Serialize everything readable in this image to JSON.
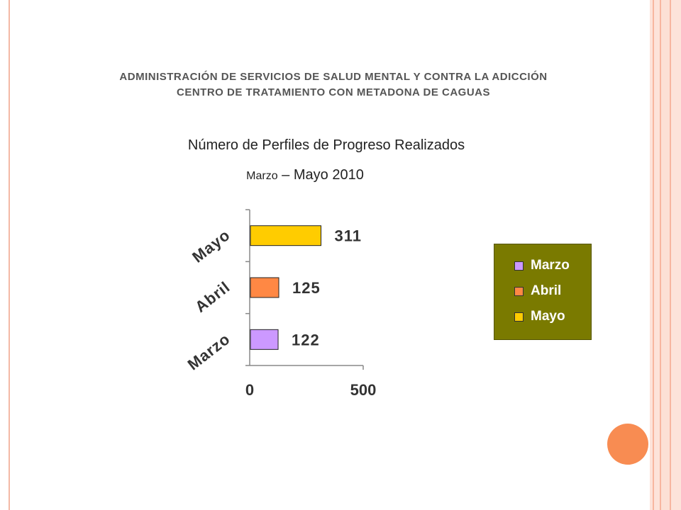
{
  "header": {
    "line1": "ADMINISTRACIÓN DE SERVICIOS DE SALUD MENTAL Y CONTRA LA ADICCIÓN",
    "line2": "CENTRO DE TRATAMIENTO CON METADONA DE CAGUAS"
  },
  "subtitle": {
    "line1": "Número de Perfiles de Progreso Realizados",
    "line2_small": "Marzo",
    "line2_rest": " – Mayo 2010"
  },
  "chart_data": {
    "type": "bar",
    "orientation": "horizontal",
    "categories": [
      "Marzo",
      "Abril",
      "Mayo"
    ],
    "values": [
      122,
      125,
      311
    ],
    "colors": [
      "#cc99ff",
      "#ff8844",
      "#ffcc00"
    ],
    "xlim": [
      0,
      500
    ],
    "xticks": [
      "0",
      "500"
    ],
    "grid": false,
    "legend_position": "right"
  },
  "legend": {
    "items": [
      {
        "label": "Marzo",
        "color": "#cc99ff"
      },
      {
        "label": "Abril",
        "color": "#ff8844"
      },
      {
        "label": "Mayo",
        "color": "#ffcc00"
      }
    ]
  }
}
